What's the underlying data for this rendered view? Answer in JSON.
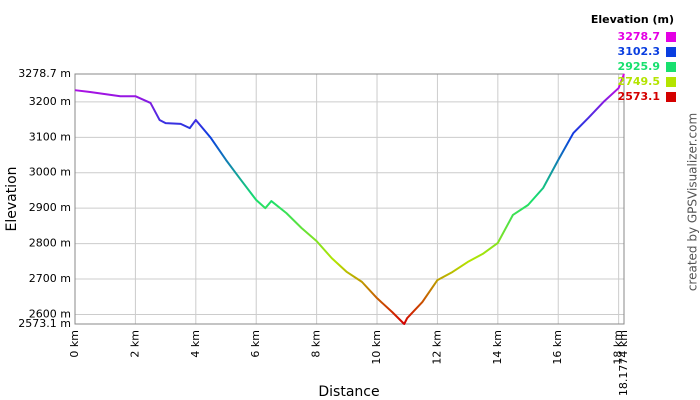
{
  "chart_data": {
    "type": "line",
    "x_label": "Distance",
    "y_label": "Elevation",
    "credit": "created by GPSVisualizer.com",
    "legend_title": "Elevation (m)",
    "colorscale": [
      {
        "value": 3278.7,
        "color": "#e400e4"
      },
      {
        "value": 3102.3,
        "color": "#0a3ee0"
      },
      {
        "value": 2925.9,
        "color": "#18e06e"
      },
      {
        "value": 2749.5,
        "color": "#b4e400"
      },
      {
        "value": 2573.1,
        "color": "#d40000"
      }
    ],
    "x": [
      0,
      0.5,
      1,
      1.5,
      2,
      2.5,
      2.8,
      3,
      3.5,
      3.8,
      4,
      4.5,
      5,
      5.5,
      6,
      6.3,
      6.5,
      7,
      7.5,
      8,
      8.5,
      9,
      9.5,
      10,
      10.5,
      10.9,
      11,
      11.5,
      12,
      12.5,
      13,
      13.5,
      14,
      14.5,
      15,
      15.5,
      16,
      16.5,
      17,
      17.5,
      18,
      18.1774
    ],
    "values": [
      3233,
      3228,
      3222,
      3216,
      3216,
      3197,
      3149,
      3140,
      3138,
      3126,
      3149,
      3098,
      3036,
      2979,
      2923,
      2900,
      2920,
      2886,
      2844,
      2807,
      2759,
      2720,
      2692,
      2646,
      2607,
      2573.1,
      2590,
      2635,
      2697,
      2720,
      2748,
      2771,
      2802,
      2881,
      2909,
      2957,
      3036,
      3112,
      3155,
      3200,
      3239,
      3278.7
    ],
    "xlim": [
      0,
      18.1774
    ],
    "xticks": [
      {
        "value": 0,
        "label": "0 km"
      },
      {
        "value": 2,
        "label": "2 km"
      },
      {
        "value": 4,
        "label": "4 km"
      },
      {
        "value": 6,
        "label": "6 km"
      },
      {
        "value": 8,
        "label": "8 km"
      },
      {
        "value": 10,
        "label": "10 km"
      },
      {
        "value": 12,
        "label": "12 km"
      },
      {
        "value": 14,
        "label": "14 km"
      },
      {
        "value": 16,
        "label": "16 km"
      },
      {
        "value": 18,
        "label": "18 km"
      },
      {
        "value": 18.1774,
        "label": "18.1774 km"
      }
    ],
    "ylim": [
      2573.1,
      3278.7
    ],
    "yticks": [
      {
        "value": 2573.1,
        "label": "2573.1 m"
      },
      {
        "value": 2600,
        "label": "2600 m"
      },
      {
        "value": 2700,
        "label": "2700 m"
      },
      {
        "value": 2800,
        "label": "2800 m"
      },
      {
        "value": 2900,
        "label": "2900 m"
      },
      {
        "value": 3000,
        "label": "3000 m"
      },
      {
        "value": 3100,
        "label": "3100 m"
      },
      {
        "value": 3200,
        "label": "3200 m"
      },
      {
        "value": 3278.7,
        "label": "3278.7 m"
      }
    ],
    "grid": true
  }
}
